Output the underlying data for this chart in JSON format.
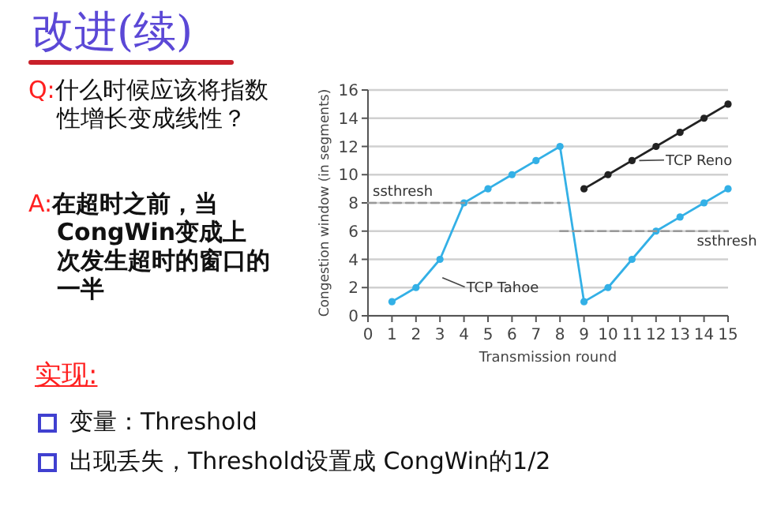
{
  "chart_data": {
    "type": "line",
    "title": "改进(续)",
    "xlabel": "Transmission round",
    "ylabel": "Congestion window (in segments)",
    "xlim": [
      0,
      15
    ],
    "ylim": [
      0,
      16
    ],
    "xticks": [
      0,
      1,
      2,
      3,
      4,
      5,
      6,
      7,
      8,
      9,
      10,
      11,
      12,
      13,
      14,
      15
    ],
    "yticks": [
      0,
      2,
      4,
      6,
      8,
      10,
      12,
      14,
      16
    ],
    "grid": "y",
    "marker": "circle",
    "line_style": "solid",
    "series": [
      {
        "name": "TCP Tahoe",
        "color": "#33b0e6",
        "x": [
          1,
          2,
          3,
          4,
          5,
          6,
          7,
          8,
          9,
          10,
          11,
          12,
          13,
          14,
          15
        ],
        "values": [
          1,
          2,
          4,
          8,
          9,
          10,
          11,
          12,
          1,
          2,
          4,
          6,
          7,
          8,
          9
        ]
      },
      {
        "name": "TCP Reno",
        "color": "#222222",
        "x": [
          9,
          10,
          11,
          12,
          13,
          14,
          15
        ],
        "values": [
          9,
          10,
          11,
          12,
          13,
          14,
          15
        ]
      },
      {
        "name": "ssthresh",
        "color": "#999999",
        "x": [
          0,
          8
        ],
        "values": [
          8,
          8
        ],
        "marker": "none",
        "line_style": "dashed"
      },
      {
        "name": "ssthresh",
        "color": "#999999",
        "x": [
          8,
          15
        ],
        "values": [
          6,
          6
        ],
        "marker": "none",
        "line_style": "dashed"
      }
    ],
    "annotations": [
      "Q:什么时候应该将指数性增长变成线性？",
      "A:在超时之前，当CongWin变成上次发生超时的窗口的一半",
      "实现:",
      "变量：Threshold",
      "出现丢失，Threshold设置成 CongWin的1/2"
    ]
  }
}
